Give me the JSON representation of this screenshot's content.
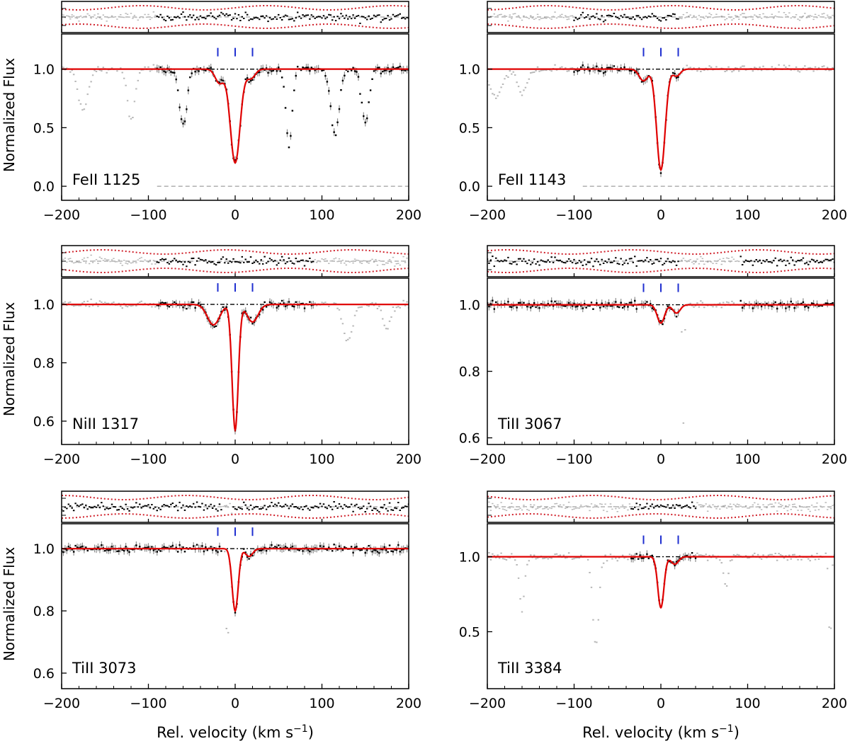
{
  "figure": {
    "ylabel": "Normalized Flux",
    "xlabel": "Rel. velocity  (km s",
    "xlabel_sup": "−1",
    "xlabel_close": ")"
  },
  "colors": {
    "data": "#000000",
    "masked": "#b8b8b8",
    "model": "#e00000",
    "residual_band": "#d0202a",
    "component_tick": "#1f2fd0",
    "reference": "#888888"
  },
  "chart_data": [
    {
      "type": "line",
      "panel": "top-left",
      "title": "FeII 1125",
      "xlabel": "",
      "ylabel": "Normalized Flux",
      "xlim": [
        -200,
        200
      ],
      "ylim": [
        -0.12,
        1.3
      ],
      "xticks": [
        -200,
        -100,
        0,
        100,
        200
      ],
      "xtick_labels": [
        "−200",
        "−100",
        "0",
        "100",
        "200"
      ],
      "yticks": [
        0.0,
        0.5,
        1.0
      ],
      "ytick_labels": [
        "0.0",
        "0.5",
        "1.0"
      ],
      "fit_range": [
        -90,
        200
      ],
      "components": [
        -20,
        0,
        20
      ],
      "model": [
        {
          "v": 0,
          "depth": 0.8,
          "b": 8
        },
        {
          "v": -18,
          "depth": 0.12,
          "b": 7
        },
        {
          "v": 18,
          "depth": 0.08,
          "b": 7
        }
      ],
      "extra_lines": [
        {
          "v": -175,
          "depth": 0.35,
          "b": 8
        },
        {
          "v": -120,
          "depth": 0.45,
          "b": 6
        },
        {
          "v": -60,
          "depth": 0.5,
          "b": 6
        },
        {
          "v": 62,
          "depth": 0.65,
          "b": 5
        },
        {
          "v": 115,
          "depth": 0.55,
          "b": 7
        },
        {
          "v": 150,
          "depth": 0.45,
          "b": 6
        }
      ]
    },
    {
      "type": "line",
      "panel": "top-right",
      "title": "FeII 1143",
      "xlabel": "",
      "ylabel": "",
      "xlim": [
        -200,
        200
      ],
      "ylim": [
        -0.12,
        1.3
      ],
      "xticks": [
        -200,
        -100,
        0,
        100,
        200
      ],
      "xtick_labels": [
        "−200",
        "−100",
        "0",
        "100",
        "200"
      ],
      "yticks": [
        0.0,
        0.5,
        1.0
      ],
      "ytick_labels": [
        "0.0",
        "0.5",
        "1.0"
      ],
      "fit_range": [
        -100,
        20
      ],
      "components": [
        -20,
        0,
        20
      ],
      "model": [
        {
          "v": 0,
          "depth": 0.86,
          "b": 7
        },
        {
          "v": -20,
          "depth": 0.1,
          "b": 7
        },
        {
          "v": 18,
          "depth": 0.06,
          "b": 6
        }
      ],
      "extra_lines": [
        {
          "v": -190,
          "depth": 0.25,
          "b": 10
        },
        {
          "v": -160,
          "depth": 0.2,
          "b": 8
        }
      ]
    },
    {
      "type": "line",
      "panel": "middle-left",
      "title": "NiII 1317",
      "xlabel": "",
      "ylabel": "Normalized Flux",
      "xlim": [
        -200,
        200
      ],
      "ylim": [
        0.52,
        1.09
      ],
      "xticks": [
        -200,
        -100,
        0,
        100,
        200
      ],
      "xtick_labels": [
        "−200",
        "−100",
        "0",
        "100",
        "200"
      ],
      "yticks": [
        0.6,
        0.8,
        1.0
      ],
      "ytick_labels": [
        "0.6",
        "0.8",
        "1.0"
      ],
      "fit_range": [
        -90,
        90
      ],
      "components": [
        -20,
        0,
        20
      ],
      "model": [
        {
          "v": 0,
          "depth": 0.43,
          "b": 5
        },
        {
          "v": -25,
          "depth": 0.07,
          "b": 10
        },
        {
          "v": 20,
          "depth": 0.06,
          "b": 9
        }
      ],
      "extra_lines": [
        {
          "v": 130,
          "depth": 0.12,
          "b": 8
        },
        {
          "v": 175,
          "depth": 0.08,
          "b": 6
        }
      ]
    },
    {
      "type": "line",
      "panel": "middle-right",
      "title": "TiII 3067",
      "xlabel": "",
      "ylabel": "",
      "xlim": [
        -200,
        200
      ],
      "ylim": [
        0.58,
        1.08
      ],
      "xticks": [
        -200,
        -100,
        0,
        100,
        200
      ],
      "xtick_labels": [
        "−200",
        "−100",
        "0",
        "100",
        "200"
      ],
      "yticks": [
        0.6,
        0.8,
        1.0
      ],
      "ytick_labels": [
        "0.6",
        "0.8",
        "1.0"
      ],
      "fit_range": [
        -200,
        200
      ],
      "mask_range": [
        22,
        90
      ],
      "components": [
        -20,
        0,
        20
      ],
      "model": [
        {
          "v": 0,
          "depth": 0.055,
          "b": 6
        },
        {
          "v": 18,
          "depth": 0.025,
          "b": 6
        }
      ],
      "extra_lines": [
        {
          "v": 26,
          "depth": 0.36,
          "b": 1.6
        }
      ]
    },
    {
      "type": "line",
      "panel": "bottom-left",
      "title": "TiII 3073",
      "xlabel": "",
      "ylabel": "Normalized Flux",
      "xlim": [
        -200,
        200
      ],
      "ylim": [
        0.55,
        1.08
      ],
      "xticks": [
        -200,
        -100,
        0,
        100,
        200
      ],
      "xtick_labels": [
        "−200",
        "−100",
        "0",
        "100",
        "200"
      ],
      "yticks": [
        0.6,
        0.8,
        1.0
      ],
      "ytick_labels": [
        "0.6",
        "0.8",
        "1.0"
      ],
      "fit_range": [
        -200,
        200
      ],
      "mask_range": [
        -15,
        -4
      ],
      "components": [
        -20,
        0,
        20
      ],
      "model": [
        {
          "v": 0,
          "depth": 0.2,
          "b": 5
        },
        {
          "v": 16,
          "depth": 0.025,
          "b": 6
        }
      ],
      "extra_lines": [
        {
          "v": -9,
          "depth": 0.38,
          "b": 1.6
        }
      ]
    },
    {
      "type": "line",
      "panel": "bottom-right",
      "title": "TiII 3384",
      "xlabel": "Rel. velocity (km s−1)",
      "ylabel": "",
      "xlim": [
        -200,
        200
      ],
      "ylim": [
        0.12,
        1.22
      ],
      "xticks": [
        -200,
        -100,
        0,
        100,
        200
      ],
      "xtick_labels": [
        "−200",
        "−100",
        "0",
        "100",
        "200"
      ],
      "yticks": [
        0.5,
        1.0
      ],
      "ytick_labels": [
        "0.5",
        "1.0"
      ],
      "fit_range": [
        -35,
        40
      ],
      "components": [
        -20,
        0,
        20
      ],
      "model": [
        {
          "v": 0,
          "depth": 0.34,
          "b": 5
        },
        {
          "v": 16,
          "depth": 0.05,
          "b": 6
        }
      ],
      "extra_lines": [
        {
          "v": -160,
          "depth": 0.35,
          "b": 4
        },
        {
          "v": -75,
          "depth": 0.6,
          "b": 5
        },
        {
          "v": 75,
          "depth": 0.2,
          "b": 4
        },
        {
          "v": 195,
          "depth": 0.6,
          "b": 2
        }
      ]
    }
  ]
}
